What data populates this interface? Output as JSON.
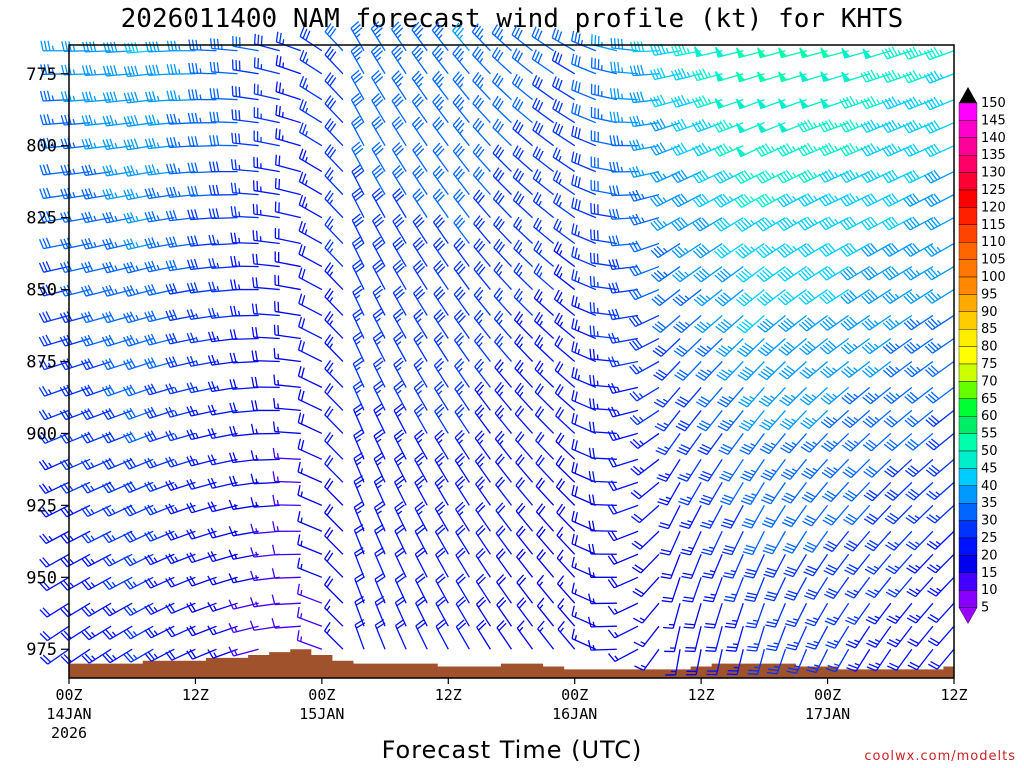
{
  "chart_data": {
    "type": "wind_barb_profile",
    "title": "2026011400 NAM forecast wind profile (kt) for KHTS",
    "xlabel": "Forecast Time (UTC)",
    "ylabel": "",
    "units": "kt",
    "x_hours_range": [
      0,
      84
    ],
    "ylim": [
      985,
      765
    ],
    "y_ticks": [
      775,
      800,
      825,
      850,
      875,
      900,
      925,
      950,
      975
    ],
    "x_ticks": [
      {
        "hour": 0,
        "label": "00Z",
        "date": "14JAN",
        "year": "2026"
      },
      {
        "hour": 12,
        "label": "12Z",
        "date": "",
        "year": ""
      },
      {
        "hour": 24,
        "label": "00Z",
        "date": "15JAN",
        "year": ""
      },
      {
        "hour": 36,
        "label": "12Z",
        "date": "",
        "year": ""
      },
      {
        "hour": 48,
        "label": "00Z",
        "date": "16JAN",
        "year": ""
      },
      {
        "hour": 60,
        "label": "12Z",
        "date": "",
        "year": ""
      },
      {
        "hour": 72,
        "label": "00Z",
        "date": "17JAN",
        "year": ""
      },
      {
        "hour": 84,
        "label": "12Z",
        "date": "",
        "year": ""
      }
    ],
    "pressure_levels": [
      767,
      775,
      784,
      792,
      800,
      809,
      817,
      825,
      834,
      842,
      850,
      859,
      867,
      875,
      884,
      892,
      900,
      909,
      917,
      925,
      934,
      942,
      950,
      959,
      967,
      975
    ],
    "hours": [
      0,
      2,
      4,
      6,
      8,
      10,
      12,
      14,
      16,
      18,
      20,
      22,
      24,
      26,
      28,
      30,
      32,
      34,
      36,
      38,
      40,
      42,
      44,
      46,
      48,
      50,
      52,
      54,
      56,
      58,
      60,
      62,
      64,
      66,
      68,
      70,
      72,
      74,
      76,
      78,
      80,
      82,
      84
    ],
    "surface_pressure": [
      980,
      980,
      980,
      980,
      979,
      979,
      979,
      978,
      978,
      977,
      976,
      975,
      977,
      979,
      980,
      980,
      980,
      980,
      981,
      981,
      981,
      980,
      980,
      981,
      982,
      982,
      982,
      982,
      982,
      982,
      981,
      980,
      980,
      980,
      980,
      981,
      981,
      982,
      982,
      982,
      982,
      982,
      981
    ],
    "wind_keyframes": [
      {
        "hour": 0,
        "speed_top": 35,
        "speed_bottom": 20,
        "dir_top": 270,
        "dir_bottom": 235
      },
      {
        "hour": 8,
        "speed_top": 40,
        "speed_bottom": 25,
        "dir_top": 265,
        "dir_bottom": 240
      },
      {
        "hour": 16,
        "speed_top": 33,
        "speed_bottom": 15,
        "dir_top": 275,
        "dir_bottom": 250
      },
      {
        "hour": 22,
        "speed_top": 25,
        "speed_bottom": 10,
        "dir_top": 290,
        "dir_bottom": 265
      },
      {
        "hour": 28,
        "speed_top": 33,
        "speed_bottom": 20,
        "dir_top": 330,
        "dir_bottom": 340
      },
      {
        "hour": 38,
        "speed_top": 35,
        "speed_bottom": 20,
        "dir_top": 320,
        "dir_bottom": 330
      },
      {
        "hour": 48,
        "speed_top": 30,
        "speed_bottom": 15,
        "dir_top": 300,
        "dir_bottom": 320
      },
      {
        "hour": 58,
        "speed_top": 43,
        "speed_bottom": 15,
        "dir_top": 260,
        "dir_bottom": 190
      },
      {
        "hour": 66,
        "speed_top": 52,
        "speed_bottom": 25,
        "dir_top": 255,
        "dir_bottom": 195
      },
      {
        "hour": 74,
        "speed_top": 50,
        "speed_bottom": 25,
        "dir_top": 255,
        "dir_bottom": 210
      },
      {
        "hour": 84,
        "speed_top": 45,
        "speed_bottom": 20,
        "dir_top": 250,
        "dir_bottom": 220
      }
    ],
    "colorbar": {
      "levels": [
        150,
        145,
        140,
        135,
        130,
        125,
        120,
        115,
        110,
        105,
        100,
        95,
        90,
        85,
        80,
        75,
        70,
        65,
        60,
        55,
        50,
        45,
        40,
        35,
        30,
        25,
        20,
        15,
        10,
        5
      ],
      "colors": [
        "#ff00ff",
        "#ff00cc",
        "#ff0099",
        "#ff0066",
        "#ff0033",
        "#ff0000",
        "#ff2000",
        "#ff4400",
        "#ff6600",
        "#ff7700",
        "#ff8800",
        "#ffaa00",
        "#ffcc00",
        "#ffee00",
        "#ffff00",
        "#ccff00",
        "#66ff00",
        "#00ff33",
        "#00ee66",
        "#00ffaa",
        "#00eecc",
        "#00ccff",
        "#0099ff",
        "#0066ff",
        "#0033ff",
        "#0011ff",
        "#0000ee",
        "#4400ff",
        "#8800ff"
      ],
      "arrow_top_color": "#000000",
      "arrow_bottom_color": "#9900ff"
    },
    "terrain_color": "#a0522d",
    "credit": "coolwx.com/modelts"
  }
}
